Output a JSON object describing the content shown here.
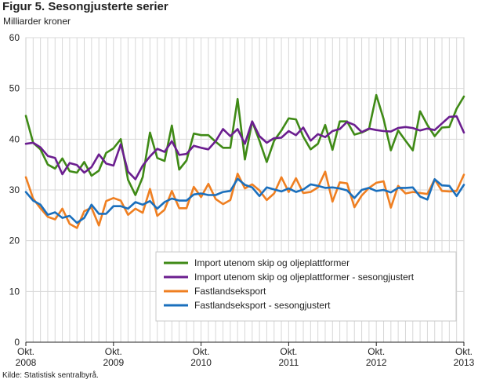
{
  "title": "Figur 5. Sesongjusterte serier",
  "source": "Kilde: Statistisk sentralbyrå.",
  "chart_data": {
    "type": "line",
    "title": "Figur 5. Sesongjusterte serier",
    "ylabel": "Milliarder kroner",
    "ylim": [
      0,
      60
    ],
    "yticks": [
      0,
      10,
      20,
      30,
      40,
      50,
      60
    ],
    "grid": true,
    "legend_position": "lower-right",
    "x_tick_labels": [
      {
        "month": "Okt.",
        "year": "2008"
      },
      {
        "month": "Okt.",
        "year": "2009"
      },
      {
        "month": "Okt.",
        "year": "2010"
      },
      {
        "month": "Okt.",
        "year": "2011"
      },
      {
        "month": "Okt.",
        "year": "2012"
      },
      {
        "month": "Okt.",
        "year": "2013"
      }
    ],
    "x_start": "2008-10",
    "x_end": "2013-10",
    "series": [
      {
        "name": "Import utenom skip og oljeplattformer",
        "color": "#3f8a16",
        "values": [
          44.6,
          39.3,
          38.0,
          35.0,
          34.2,
          36.2,
          33.7,
          33.4,
          35.5,
          32.8,
          33.8,
          37.3,
          38.2,
          40.0,
          32.0,
          29.0,
          32.5,
          41.3,
          36.3,
          35.7,
          42.7,
          34.0,
          35.8,
          41.1,
          40.8,
          40.8,
          39.5,
          38.3,
          38.3,
          47.9,
          36.0,
          43.5,
          39.7,
          35.5,
          39.7,
          41.7,
          44.1,
          43.9,
          40.5,
          38.0,
          39.1,
          42.8,
          37.9,
          43.5,
          43.5,
          40.9,
          41.3,
          42.0,
          48.7,
          44.0,
          37.8,
          41.7,
          39.7,
          37.8,
          45.5,
          42.8,
          40.6,
          42.3,
          42.4,
          46.0,
          48.4
        ]
      },
      {
        "name": "Import utenom skip og oljeplattformer - sesongjustert",
        "color": "#6b1e8f",
        "values": [
          39.1,
          39.3,
          38.4,
          36.7,
          36.3,
          33.1,
          35.3,
          34.9,
          33.4,
          34.5,
          37.0,
          35.2,
          34.8,
          39.0,
          33.6,
          32.1,
          34.8,
          36.6,
          38.1,
          37.5,
          39.6,
          36.9,
          37.1,
          38.7,
          38.3,
          38.0,
          39.6,
          42.0,
          40.6,
          42.0,
          39.1,
          43.5,
          40.6,
          39.3,
          40.2,
          40.3,
          41.6,
          40.8,
          42.3,
          39.7,
          41.0,
          40.4,
          41.6,
          42.0,
          43.4,
          42.8,
          41.4,
          42.1,
          41.8,
          41.6,
          41.5,
          42.2,
          42.4,
          42.2,
          41.7,
          42.1,
          41.8,
          43.1,
          44.4,
          44.5,
          41.3
        ]
      },
      {
        "name": "Fastlandseksport",
        "color": "#ef7f21",
        "values": [
          32.5,
          28.3,
          26.4,
          24.7,
          24.2,
          26.3,
          23.3,
          22.5,
          25.8,
          26.5,
          23.0,
          27.8,
          28.4,
          27.9,
          25.1,
          26.3,
          25.5,
          30.2,
          24.9,
          26.1,
          29.8,
          26.4,
          26.4,
          30.6,
          28.6,
          31.2,
          28.2,
          27.2,
          28.0,
          33.2,
          30.3,
          31.1,
          29.9,
          28.0,
          29.3,
          32.5,
          29.6,
          32.3,
          29.4,
          29.6,
          30.5,
          33.6,
          27.7,
          31.5,
          31.3,
          26.6,
          28.9,
          30.4,
          31.4,
          31.7,
          26.5,
          30.8,
          29.3,
          29.6,
          29.4,
          29.2,
          32.1,
          29.8,
          29.7,
          29.8,
          33.0
        ]
      },
      {
        "name": "Fastlandseksport - sesongjustert",
        "color": "#1a6fbd",
        "values": [
          29.6,
          27.9,
          27.1,
          25.1,
          25.6,
          24.5,
          24.9,
          23.5,
          24.5,
          27.1,
          25.3,
          25.3,
          26.8,
          26.8,
          26.3,
          27.6,
          27.1,
          27.8,
          26.3,
          27.6,
          28.3,
          27.9,
          27.9,
          29.1,
          29.3,
          29.0,
          29.0,
          29.6,
          29.8,
          32.2,
          31.0,
          30.5,
          28.8,
          30.5,
          30.1,
          29.7,
          30.3,
          29.6,
          30.1,
          31.1,
          30.8,
          30.4,
          30.5,
          30.3,
          29.9,
          28.4,
          30.0,
          30.4,
          29.8,
          30.0,
          29.5,
          30.4,
          30.4,
          30.5,
          28.7,
          28.1,
          32.1,
          30.9,
          30.8,
          28.8,
          31.0
        ]
      }
    ]
  }
}
